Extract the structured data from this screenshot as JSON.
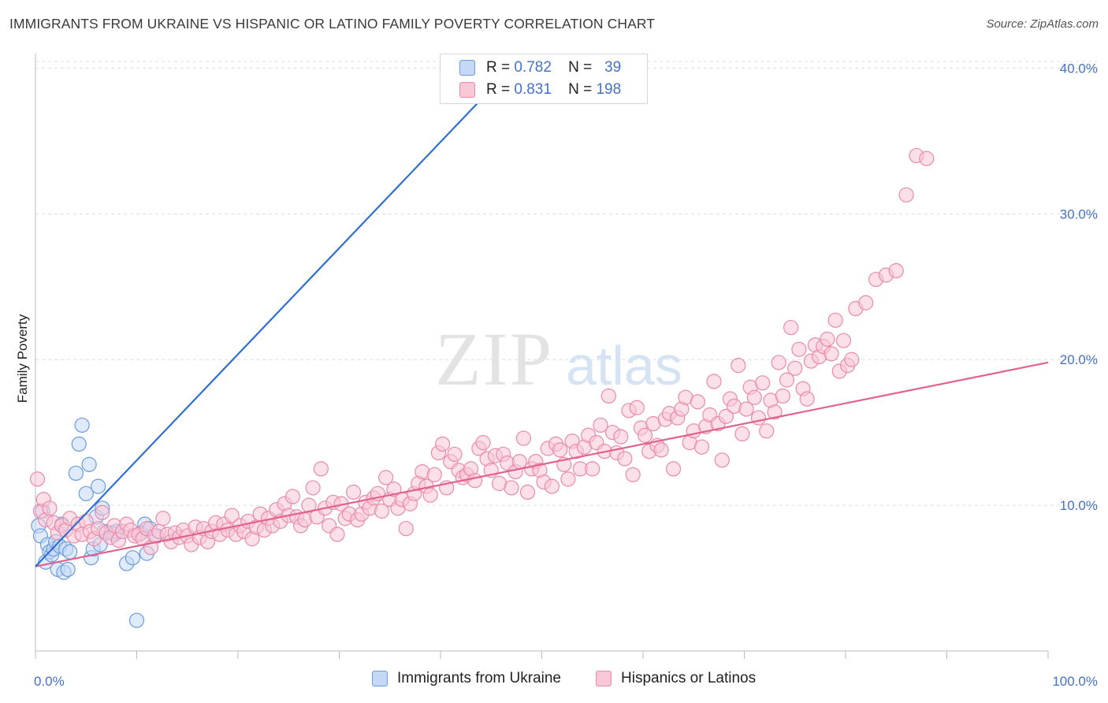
{
  "title": "IMMIGRANTS FROM UKRAINE VS HISPANIC OR LATINO FAMILY POVERTY CORRELATION CHART",
  "source": "Source: ZipAtlas.com",
  "watermark": {
    "zip": "ZIP",
    "atlas": "atlas"
  },
  "legend": {
    "r_label": "R =",
    "n_label": "N =",
    "rows": [
      {
        "r": "0.782",
        "n": "39"
      },
      {
        "r": "0.831",
        "n": "198"
      }
    ]
  },
  "colors": {
    "ukraine_fill": "#c5d8f5",
    "ukraine_stroke": "#6b9be0",
    "ukraine_line": "#2f6fd1",
    "hispanic_fill": "#f9c7d6",
    "hispanic_stroke": "#e98aaa",
    "hispanic_line": "#e0628f",
    "tick_text": "#4472c4",
    "grid": "#dddddd"
  },
  "chart_data": {
    "type": "scatter",
    "title": "IMMIGRANTS FROM UKRAINE VS HISPANIC OR LATINO FAMILY POVERTY CORRELATION CHART",
    "xlabel": "",
    "ylabel": "Family Poverty",
    "xlim": [
      0,
      100
    ],
    "ylim": [
      0,
      41
    ],
    "x_tick_labels": [
      "0.0%",
      "100.0%"
    ],
    "y_ticks": [
      10,
      20,
      30,
      40
    ],
    "y_tick_labels": [
      "10.0%",
      "20.0%",
      "30.0%",
      "40.0%"
    ],
    "grid": true,
    "legend_position": "top-center",
    "series": [
      {
        "name": "Immigrants from Ukraine",
        "r": 0.782,
        "n": 39,
        "trend": {
          "x": [
            0.0,
            47.5
          ],
          "y": [
            5.8,
            40.4
          ]
        },
        "points": [
          [
            0.3,
            8.6
          ],
          [
            0.5,
            7.9
          ],
          [
            0.7,
            9.6
          ],
          [
            1.0,
            6.1
          ],
          [
            1.2,
            7.3
          ],
          [
            1.4,
            6.8
          ],
          [
            1.6,
            6.6
          ],
          [
            1.8,
            7.0
          ],
          [
            2.0,
            7.5
          ],
          [
            2.2,
            5.6
          ],
          [
            2.4,
            7.2
          ],
          [
            2.6,
            8.7
          ],
          [
            2.8,
            5.4
          ],
          [
            3.0,
            7.0
          ],
          [
            3.2,
            5.6
          ],
          [
            3.4,
            6.8
          ],
          [
            4.0,
            12.2
          ],
          [
            4.3,
            14.2
          ],
          [
            4.6,
            15.5
          ],
          [
            5.0,
            10.8
          ],
          [
            5.3,
            12.8
          ],
          [
            5.5,
            6.4
          ],
          [
            5.7,
            7.0
          ],
          [
            6.0,
            9.2
          ],
          [
            6.2,
            11.3
          ],
          [
            6.4,
            7.3
          ],
          [
            6.6,
            9.8
          ],
          [
            6.8,
            8.2
          ],
          [
            7.5,
            8.1
          ],
          [
            7.8,
            8.0
          ],
          [
            8.0,
            8.2
          ],
          [
            9.0,
            6.0
          ],
          [
            9.6,
            6.4
          ],
          [
            10.0,
            2.1
          ],
          [
            10.4,
            8.1
          ],
          [
            10.8,
            8.7
          ],
          [
            11.0,
            6.7
          ],
          [
            11.3,
            8.4
          ],
          [
            12.0,
            7.9
          ]
        ]
      },
      {
        "name": "Hispanics or Latinos",
        "r": 0.831,
        "n": 198,
        "trend": {
          "x": [
            0.0,
            100.0
          ],
          "y": [
            5.8,
            19.8
          ]
        },
        "points": [
          [
            0.2,
            11.8
          ],
          [
            0.5,
            9.6
          ],
          [
            0.8,
            10.4
          ],
          [
            1.0,
            9.0
          ],
          [
            1.4,
            9.8
          ],
          [
            1.8,
            8.8
          ],
          [
            2.2,
            8.1
          ],
          [
            2.6,
            8.6
          ],
          [
            3.0,
            8.3
          ],
          [
            3.4,
            9.1
          ],
          [
            3.8,
            7.9
          ],
          [
            4.2,
            8.7
          ],
          [
            4.6,
            8.0
          ],
          [
            5.0,
            8.9
          ],
          [
            5.4,
            8.2
          ],
          [
            5.8,
            7.7
          ],
          [
            6.2,
            8.4
          ],
          [
            6.6,
            9.5
          ],
          [
            7.0,
            8.1
          ],
          [
            7.4,
            7.8
          ],
          [
            7.8,
            8.6
          ],
          [
            8.2,
            7.6
          ],
          [
            8.6,
            8.2
          ],
          [
            9.0,
            8.7
          ],
          [
            9.4,
            8.3
          ],
          [
            9.8,
            7.9
          ],
          [
            10.2,
            8.0
          ],
          [
            10.6,
            7.7
          ],
          [
            11.0,
            8.4
          ],
          [
            11.4,
            7.1
          ],
          [
            11.8,
            7.9
          ],
          [
            12.2,
            8.2
          ],
          [
            12.6,
            9.1
          ],
          [
            13.0,
            8.0
          ],
          [
            13.4,
            7.5
          ],
          [
            13.8,
            8.1
          ],
          [
            14.2,
            7.8
          ],
          [
            14.6,
            8.3
          ],
          [
            15.0,
            7.9
          ],
          [
            15.4,
            7.3
          ],
          [
            15.8,
            8.5
          ],
          [
            16.2,
            7.8
          ],
          [
            16.6,
            8.4
          ],
          [
            17.0,
            7.5
          ],
          [
            17.4,
            8.2
          ],
          [
            17.8,
            8.8
          ],
          [
            18.2,
            8.0
          ],
          [
            18.6,
            8.7
          ],
          [
            19.0,
            8.3
          ],
          [
            19.4,
            9.3
          ],
          [
            19.8,
            8.0
          ],
          [
            20.2,
            8.6
          ],
          [
            20.6,
            8.2
          ],
          [
            21.0,
            8.9
          ],
          [
            21.4,
            7.7
          ],
          [
            21.8,
            8.5
          ],
          [
            22.2,
            9.4
          ],
          [
            22.6,
            8.3
          ],
          [
            23.0,
            9.1
          ],
          [
            23.4,
            8.6
          ],
          [
            23.8,
            9.7
          ],
          [
            24.2,
            8.9
          ],
          [
            24.6,
            10.1
          ],
          [
            25.0,
            9.3
          ],
          [
            25.4,
            10.6
          ],
          [
            25.8,
            9.2
          ],
          [
            26.2,
            8.6
          ],
          [
            26.6,
            9.0
          ],
          [
            27.0,
            10.0
          ],
          [
            27.4,
            11.2
          ],
          [
            27.8,
            9.2
          ],
          [
            28.2,
            12.5
          ],
          [
            28.6,
            9.8
          ],
          [
            29.0,
            8.6
          ],
          [
            29.4,
            10.2
          ],
          [
            29.8,
            8.0
          ],
          [
            30.2,
            10.1
          ],
          [
            30.6,
            9.1
          ],
          [
            31.0,
            9.4
          ],
          [
            31.4,
            10.9
          ],
          [
            31.8,
            9.0
          ],
          [
            32.2,
            9.4
          ],
          [
            32.6,
            10.2
          ],
          [
            33.0,
            9.8
          ],
          [
            33.4,
            10.5
          ],
          [
            33.8,
            10.8
          ],
          [
            34.2,
            9.6
          ],
          [
            34.6,
            11.9
          ],
          [
            35.0,
            10.4
          ],
          [
            35.4,
            11.1
          ],
          [
            35.8,
            9.8
          ],
          [
            36.2,
            10.4
          ],
          [
            36.6,
            8.4
          ],
          [
            37.0,
            10.1
          ],
          [
            37.4,
            10.8
          ],
          [
            37.8,
            11.5
          ],
          [
            38.2,
            12.3
          ],
          [
            38.6,
            11.3
          ],
          [
            39.0,
            10.7
          ],
          [
            39.4,
            12.1
          ],
          [
            39.8,
            13.6
          ],
          [
            40.2,
            14.2
          ],
          [
            40.6,
            11.2
          ],
          [
            41.0,
            13.0
          ],
          [
            41.4,
            13.5
          ],
          [
            41.8,
            12.4
          ],
          [
            42.2,
            11.9
          ],
          [
            42.6,
            12.1
          ],
          [
            43.0,
            12.5
          ],
          [
            43.4,
            11.7
          ],
          [
            43.8,
            13.9
          ],
          [
            44.2,
            14.3
          ],
          [
            44.6,
            13.2
          ],
          [
            45.0,
            12.4
          ],
          [
            45.4,
            13.4
          ],
          [
            45.8,
            11.5
          ],
          [
            46.2,
            13.5
          ],
          [
            46.6,
            12.9
          ],
          [
            47.0,
            11.2
          ],
          [
            47.4,
            12.3
          ],
          [
            47.8,
            13.0
          ],
          [
            48.2,
            14.6
          ],
          [
            48.6,
            10.9
          ],
          [
            49.0,
            12.5
          ],
          [
            49.4,
            13.0
          ],
          [
            49.8,
            12.4
          ],
          [
            50.2,
            11.6
          ],
          [
            50.6,
            13.9
          ],
          [
            51.0,
            11.3
          ],
          [
            51.4,
            14.2
          ],
          [
            51.8,
            13.8
          ],
          [
            52.2,
            12.8
          ],
          [
            52.6,
            11.8
          ],
          [
            53.0,
            14.4
          ],
          [
            53.4,
            13.7
          ],
          [
            53.8,
            12.5
          ],
          [
            54.2,
            14.0
          ],
          [
            54.6,
            14.8
          ],
          [
            55.0,
            12.5
          ],
          [
            55.4,
            14.3
          ],
          [
            55.8,
            15.5
          ],
          [
            56.2,
            13.7
          ],
          [
            56.6,
            17.5
          ],
          [
            57.0,
            15.0
          ],
          [
            57.4,
            13.6
          ],
          [
            57.8,
            14.7
          ],
          [
            58.2,
            13.2
          ],
          [
            58.6,
            16.5
          ],
          [
            59.0,
            12.1
          ],
          [
            59.4,
            16.7
          ],
          [
            59.8,
            15.3
          ],
          [
            60.2,
            14.8
          ],
          [
            60.6,
            13.7
          ],
          [
            61.0,
            15.6
          ],
          [
            61.4,
            14.1
          ],
          [
            61.8,
            13.8
          ],
          [
            62.2,
            15.9
          ],
          [
            62.6,
            16.3
          ],
          [
            63.0,
            12.5
          ],
          [
            63.4,
            16.0
          ],
          [
            63.8,
            16.6
          ],
          [
            64.2,
            17.4
          ],
          [
            64.6,
            14.3
          ],
          [
            65.0,
            15.1
          ],
          [
            65.4,
            17.1
          ],
          [
            65.8,
            14.0
          ],
          [
            66.2,
            15.4
          ],
          [
            66.6,
            16.2
          ],
          [
            67.0,
            18.5
          ],
          [
            67.4,
            15.6
          ],
          [
            67.8,
            13.1
          ],
          [
            68.2,
            16.1
          ],
          [
            68.6,
            17.3
          ],
          [
            69.0,
            16.8
          ],
          [
            69.4,
            19.6
          ],
          [
            69.8,
            14.9
          ],
          [
            70.2,
            16.6
          ],
          [
            70.6,
            18.1
          ],
          [
            71.0,
            17.4
          ],
          [
            71.4,
            16.0
          ],
          [
            71.8,
            18.4
          ],
          [
            72.2,
            15.1
          ],
          [
            72.6,
            17.2
          ],
          [
            73.0,
            16.4
          ],
          [
            73.4,
            19.8
          ],
          [
            73.8,
            17.5
          ],
          [
            74.2,
            18.6
          ],
          [
            74.6,
            22.2
          ],
          [
            75.0,
            19.4
          ],
          [
            75.4,
            20.7
          ],
          [
            75.8,
            18.0
          ],
          [
            76.2,
            17.3
          ],
          [
            76.6,
            19.9
          ],
          [
            77.0,
            21.0
          ],
          [
            77.4,
            20.2
          ],
          [
            77.8,
            20.9
          ],
          [
            78.2,
            21.4
          ],
          [
            78.6,
            20.4
          ],
          [
            79.0,
            22.7
          ],
          [
            79.4,
            19.2
          ],
          [
            79.8,
            21.3
          ],
          [
            80.2,
            19.6
          ],
          [
            80.6,
            20.0
          ],
          [
            81.0,
            23.5
          ],
          [
            82.0,
            23.9
          ],
          [
            83.0,
            25.5
          ],
          [
            84.0,
            25.8
          ],
          [
            85.0,
            26.1
          ],
          [
            86.0,
            31.3
          ],
          [
            87.0,
            34.0
          ],
          [
            88.0,
            33.8
          ]
        ]
      }
    ]
  },
  "bottom_legend": {
    "items": [
      "Immigrants from Ukraine",
      "Hispanics or Latinos"
    ]
  }
}
